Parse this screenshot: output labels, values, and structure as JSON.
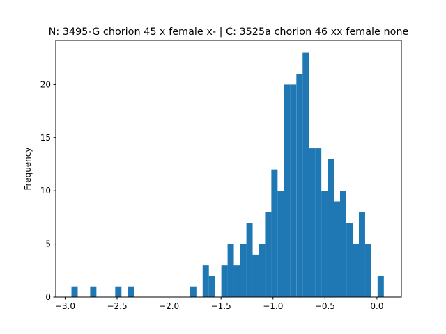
{
  "chart_data": {
    "type": "bar",
    "title": "N: 3495-G chorion 45 x female x- | C: 3525a chorion 46 xx female none",
    "xlabel": "",
    "ylabel": "Frequency",
    "xlim": [
      -3.09,
      0.235
    ],
    "ylim": [
      0,
      24.15
    ],
    "bar_color": "#1f77b4",
    "bin_width": 0.0601,
    "x_ticks": [
      {
        "value": -3.0,
        "label": "−3.0"
      },
      {
        "value": -2.5,
        "label": "−2.5"
      },
      {
        "value": -2.0,
        "label": "−2.0"
      },
      {
        "value": -1.5,
        "label": "−1.5"
      },
      {
        "value": -1.0,
        "label": "−1.0"
      },
      {
        "value": -0.5,
        "label": "−0.5"
      },
      {
        "value": 0.0,
        "label": "0.0"
      }
    ],
    "y_ticks": [
      {
        "value": 0,
        "label": "0"
      },
      {
        "value": 5,
        "label": "5"
      },
      {
        "value": 10,
        "label": "10"
      },
      {
        "value": 15,
        "label": "15"
      },
      {
        "value": 20,
        "label": "20"
      }
    ],
    "bins": [
      {
        "x": -2.939,
        "count": 1
      },
      {
        "x": -2.759,
        "count": 1
      },
      {
        "x": -2.518,
        "count": 1
      },
      {
        "x": -2.398,
        "count": 1
      },
      {
        "x": -1.797,
        "count": 1
      },
      {
        "x": -1.677,
        "count": 3
      },
      {
        "x": -1.617,
        "count": 2
      },
      {
        "x": -1.497,
        "count": 3
      },
      {
        "x": -1.437,
        "count": 5
      },
      {
        "x": -1.377,
        "count": 3
      },
      {
        "x": -1.316,
        "count": 5
      },
      {
        "x": -1.256,
        "count": 7
      },
      {
        "x": -1.196,
        "count": 4
      },
      {
        "x": -1.136,
        "count": 5
      },
      {
        "x": -1.076,
        "count": 8
      },
      {
        "x": -1.016,
        "count": 12
      },
      {
        "x": -0.956,
        "count": 10
      },
      {
        "x": -0.896,
        "count": 20
      },
      {
        "x": -0.836,
        "count": 20
      },
      {
        "x": -0.775,
        "count": 21
      },
      {
        "x": -0.715,
        "count": 23
      },
      {
        "x": -0.655,
        "count": 14
      },
      {
        "x": -0.595,
        "count": 14
      },
      {
        "x": -0.535,
        "count": 10
      },
      {
        "x": -0.475,
        "count": 13
      },
      {
        "x": -0.415,
        "count": 9
      },
      {
        "x": -0.355,
        "count": 10
      },
      {
        "x": -0.294,
        "count": 7
      },
      {
        "x": -0.234,
        "count": 5
      },
      {
        "x": -0.174,
        "count": 8
      },
      {
        "x": -0.114,
        "count": 5
      },
      {
        "x": 0.006,
        "count": 2
      }
    ]
  }
}
